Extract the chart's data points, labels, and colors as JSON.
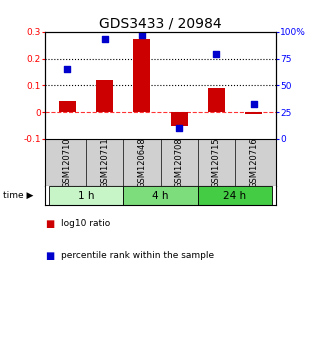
{
  "title": "GDS3433 / 20984",
  "samples": [
    "GSM120710",
    "GSM120711",
    "GSM120648",
    "GSM120708",
    "GSM120715",
    "GSM120716"
  ],
  "log10_ratio": [
    0.04,
    0.12,
    0.275,
    -0.05,
    0.09,
    -0.008
  ],
  "percentile_rank": [
    65,
    93,
    97,
    10,
    79,
    33
  ],
  "left_ylim": [
    -0.1,
    0.3
  ],
  "right_ylim": [
    0,
    100
  ],
  "left_yticks": [
    -0.1,
    0.0,
    0.1,
    0.2,
    0.3
  ],
  "left_ytick_labels": [
    "-0.1",
    "0",
    "0.1",
    "0.2",
    "0.3"
  ],
  "right_yticks": [
    0,
    25,
    50,
    75,
    100
  ],
  "right_ytick_labels": [
    "0",
    "25",
    "50",
    "75",
    "100%"
  ],
  "hlines_dotted": [
    0.1,
    0.2
  ],
  "hline_dashed": 0.0,
  "time_groups": [
    {
      "label": "1 h",
      "start": 0,
      "end": 2,
      "color": "#c8f5c8"
    },
    {
      "label": "4 h",
      "start": 2,
      "end": 4,
      "color": "#7ddd7d"
    },
    {
      "label": "24 h",
      "start": 4,
      "end": 6,
      "color": "#44cc44"
    }
  ],
  "bar_color": "#cc0000",
  "dot_color": "#0000cc",
  "bar_width": 0.45,
  "dot_size": 18,
  "title_fontsize": 10,
  "tick_fontsize": 6.5,
  "legend_fontsize": 6.5,
  "time_label_fontsize": 7.5,
  "sample_label_fontsize": 6,
  "background_color": "#ffffff",
  "plot_bg_color": "#ffffff",
  "sample_bg_color": "#d0d0d0"
}
